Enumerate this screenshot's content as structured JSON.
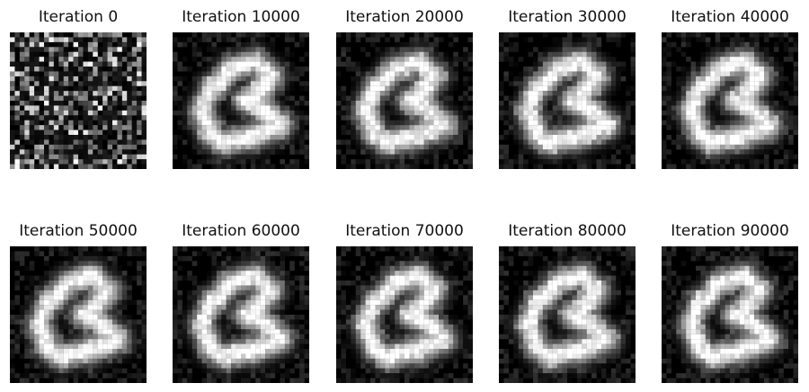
{
  "figure": {
    "panels": [
      {
        "title": "Iteration 0",
        "kind": "noise"
      },
      {
        "title": "Iteration 10000",
        "kind": "digit"
      },
      {
        "title": "Iteration 20000",
        "kind": "digit"
      },
      {
        "title": "Iteration 30000",
        "kind": "digit"
      },
      {
        "title": "Iteration 40000",
        "kind": "digit"
      },
      {
        "title": "Iteration 50000",
        "kind": "digit"
      },
      {
        "title": "Iteration 60000",
        "kind": "digit"
      },
      {
        "title": "Iteration 70000",
        "kind": "digit"
      },
      {
        "title": "Iteration 80000",
        "kind": "digit"
      },
      {
        "title": "Iteration 90000",
        "kind": "digit"
      }
    ],
    "colormap": "gray"
  }
}
